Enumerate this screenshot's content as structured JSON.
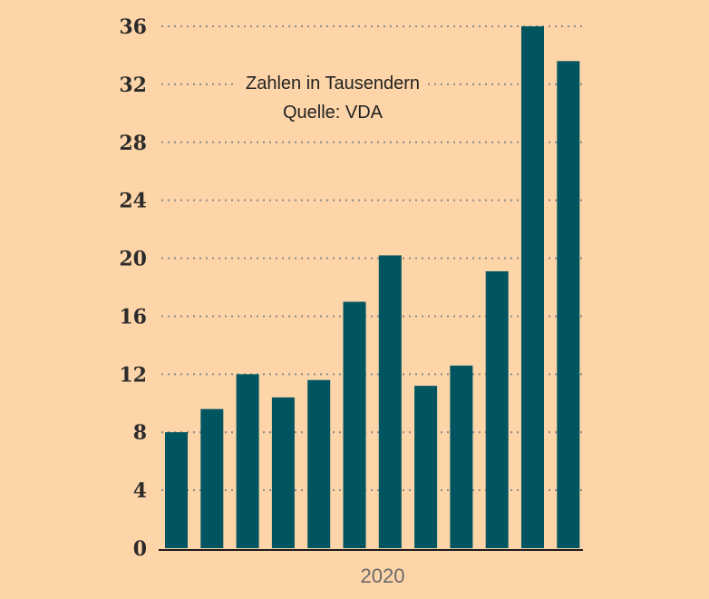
{
  "chart_data": {
    "type": "bar",
    "values": [
      8,
      9.6,
      12,
      10.4,
      11.6,
      17,
      20.2,
      11.2,
      12.6,
      19.1,
      36,
      33.6
    ],
    "x_label": "2020",
    "notes": [
      "Zahlen in Tausendern",
      "Quelle: VDA"
    ],
    "y_ticks": [
      0,
      4,
      8,
      12,
      16,
      20,
      24,
      28,
      32,
      36
    ],
    "ylim": [
      0,
      36
    ],
    "grid": "dotted-horizontal",
    "colors": {
      "bar": "#005560",
      "background": "#fdd5a8",
      "grid": "#8a8a8a"
    }
  }
}
